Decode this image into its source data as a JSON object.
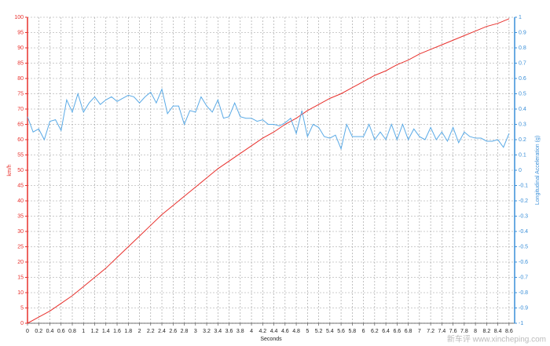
{
  "chart_data": {
    "type": "line",
    "x_label": "Seconds",
    "y_label": "km/h",
    "y2_label": "Longitudinal Acceleration (g)",
    "watermark": "新车评 www.xincheping.com",
    "xlim": [
      0,
      8.7
    ],
    "xticks": [
      0,
      0.2,
      0.4,
      0.6,
      0.8,
      1,
      1.2,
      1.4,
      1.6,
      1.8,
      2,
      2.2,
      2.4,
      2.6,
      2.8,
      3,
      3.2,
      3.4,
      3.6,
      3.8,
      4,
      4.2,
      4.4,
      4.6,
      4.8,
      5,
      5.2,
      5.4,
      5.6,
      5.8,
      6,
      6.2,
      6.4,
      6.6,
      6.8,
      7,
      7.2,
      7.4,
      7.6,
      7.8,
      8,
      8.2,
      8.4,
      8.6
    ],
    "ylim": [
      0,
      100
    ],
    "yticks": [
      0,
      5,
      10,
      15,
      20,
      25,
      30,
      35,
      40,
      45,
      50,
      55,
      60,
      65,
      70,
      75,
      80,
      85,
      90,
      95,
      100
    ],
    "y2lim": [
      -1,
      1
    ],
    "y2ticks": [
      -1,
      -0.9,
      -0.8,
      -0.7,
      -0.6,
      -0.5,
      -0.4,
      -0.3,
      -0.2,
      -0.1,
      0,
      0.1,
      0.2,
      0.3,
      0.4,
      0.5,
      0.6,
      0.7,
      0.8,
      0.9,
      1
    ],
    "grid": true,
    "y_axis_color": "#e8302c",
    "y2_axis_color": "#3a8fd8",
    "series": [
      {
        "color": "#e8302c",
        "x": [
          0,
          0.2,
          0.4,
          0.6,
          0.8,
          1,
          1.2,
          1.4,
          1.6,
          1.8,
          2,
          2.2,
          2.4,
          2.6,
          2.8,
          3,
          3.2,
          3.4,
          3.6,
          3.8,
          4,
          4.2,
          4.4,
          4.6,
          4.8,
          5,
          5.2,
          5.4,
          5.6,
          5.8,
          6,
          6.2,
          6.4,
          6.6,
          6.8,
          7,
          7.2,
          7.4,
          7.6,
          7.8,
          8,
          8.2,
          8.4,
          8.6
        ],
        "values": [
          0,
          2,
          4,
          6.5,
          9,
          12,
          15,
          18,
          21.5,
          25,
          28.5,
          32,
          35.5,
          38.5,
          41.5,
          44.5,
          47.5,
          50.5,
          53,
          55.5,
          58,
          60.5,
          62.5,
          65,
          67,
          69.5,
          71.5,
          73.5,
          75,
          77,
          79,
          81,
          82.5,
          84.5,
          86,
          88,
          89.5,
          91,
          92.5,
          94,
          95.5,
          97,
          98,
          99.5
        ]
      },
      {
        "color": "#5aaae6",
        "axis": "y2",
        "x": [
          0,
          0.1,
          0.2,
          0.3,
          0.4,
          0.5,
          0.6,
          0.7,
          0.8,
          0.9,
          1,
          1.1,
          1.2,
          1.3,
          1.4,
          1.5,
          1.6,
          1.7,
          1.8,
          1.9,
          2,
          2.1,
          2.2,
          2.3,
          2.4,
          2.5,
          2.6,
          2.7,
          2.8,
          2.9,
          3,
          3.1,
          3.2,
          3.3,
          3.4,
          3.5,
          3.6,
          3.7,
          3.8,
          3.9,
          4,
          4.1,
          4.2,
          4.3,
          4.4,
          4.5,
          4.6,
          4.7,
          4.8,
          4.9,
          5,
          5.1,
          5.2,
          5.3,
          5.4,
          5.5,
          5.6,
          5.7,
          5.8,
          5.9,
          6,
          6.1,
          6.2,
          6.3,
          6.4,
          6.5,
          6.6,
          6.7,
          6.8,
          6.9,
          7,
          7.1,
          7.2,
          7.3,
          7.4,
          7.5,
          7.6,
          7.7,
          7.8,
          7.9,
          8,
          8.1,
          8.2,
          8.3,
          8.4,
          8.5,
          8.6
        ],
        "values": [
          0.35,
          0.25,
          0.27,
          0.2,
          0.32,
          0.33,
          0.26,
          0.46,
          0.38,
          0.5,
          0.38,
          0.44,
          0.48,
          0.43,
          0.46,
          0.48,
          0.45,
          0.47,
          0.49,
          0.48,
          0.44,
          0.48,
          0.51,
          0.44,
          0.53,
          0.37,
          0.42,
          0.42,
          0.3,
          0.39,
          0.38,
          0.48,
          0.42,
          0.38,
          0.46,
          0.34,
          0.35,
          0.44,
          0.35,
          0.34,
          0.34,
          0.32,
          0.33,
          0.3,
          0.3,
          0.29,
          0.31,
          0.34,
          0.24,
          0.39,
          0.22,
          0.3,
          0.28,
          0.22,
          0.21,
          0.23,
          0.14,
          0.3,
          0.22,
          0.22,
          0.22,
          0.3,
          0.2,
          0.25,
          0.2,
          0.3,
          0.2,
          0.3,
          0.2,
          0.27,
          0.22,
          0.2,
          0.28,
          0.2,
          0.25,
          0.19,
          0.28,
          0.18,
          0.25,
          0.22,
          0.21,
          0.21,
          0.19,
          0.19,
          0.2,
          0.15,
          0.24
        ]
      }
    ]
  }
}
